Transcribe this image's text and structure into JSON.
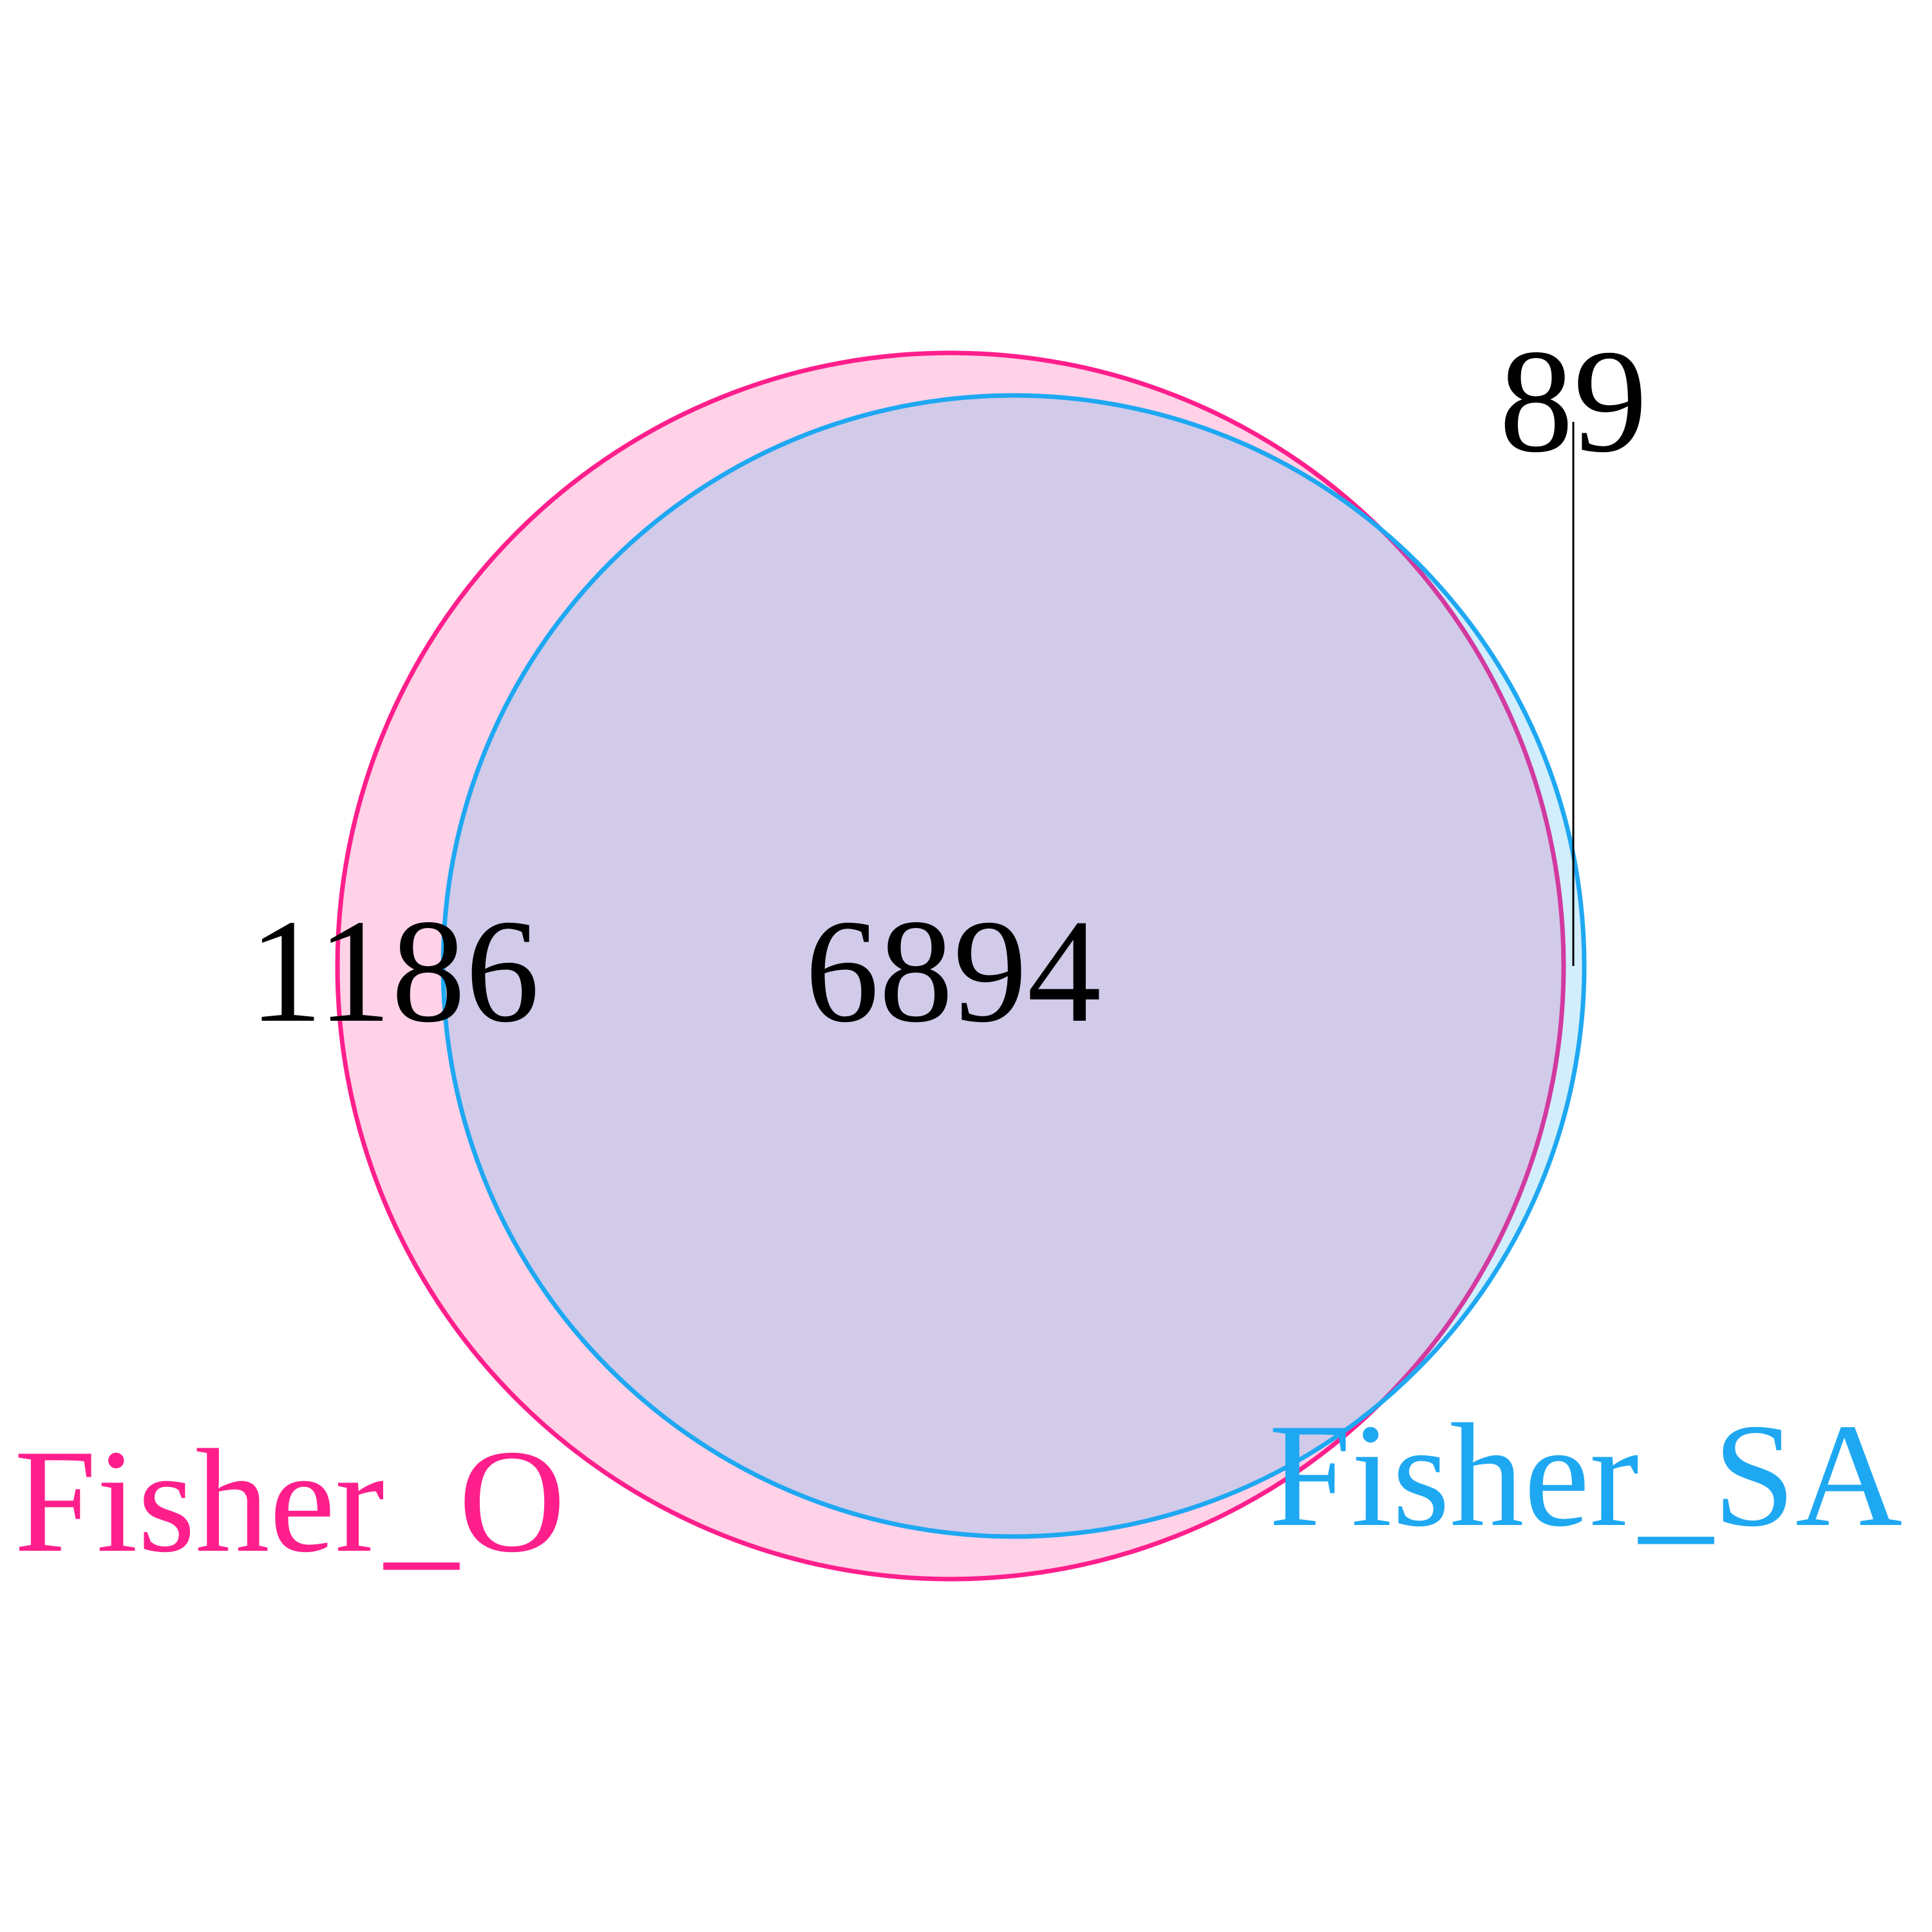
{
  "chart_data": {
    "type": "venn",
    "sets": [
      {
        "name": "Fisher_O",
        "color": "#ff1f8c",
        "fill": "#ff1f8c"
      },
      {
        "name": "Fisher_SA",
        "color": "#1fa8f2",
        "fill": "#1fa8f2"
      }
    ],
    "regions": {
      "only_a": "1186",
      "both": "6894",
      "only_b": "89"
    },
    "overlap_fill": "#d3cceb",
    "background": "#ffffff"
  }
}
